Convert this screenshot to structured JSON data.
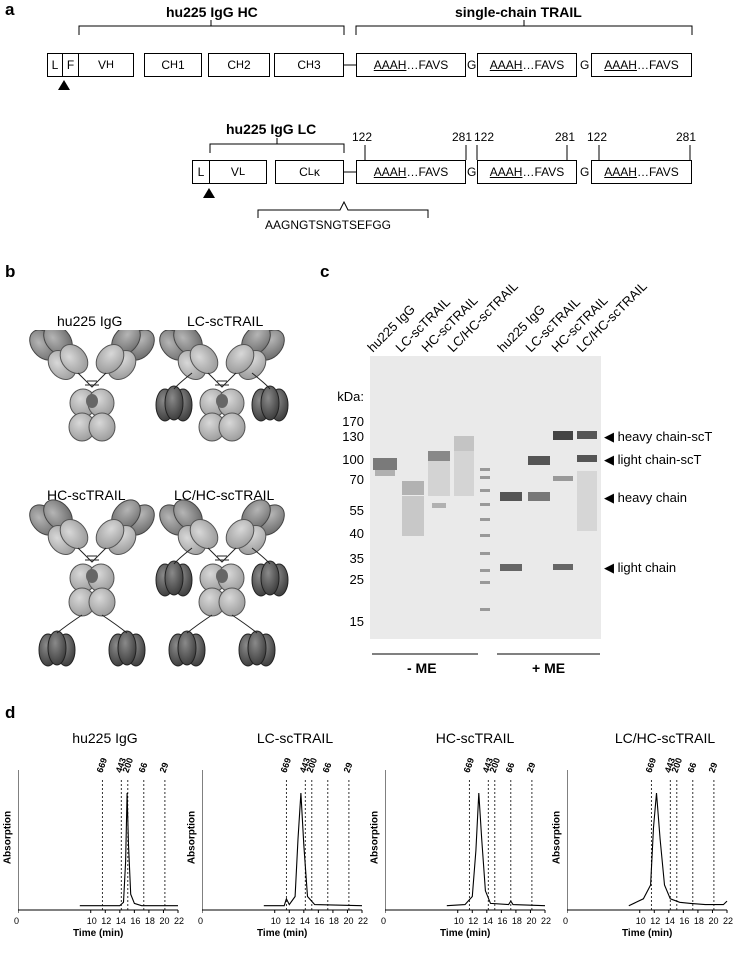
{
  "panels": {
    "a": "a",
    "b": "b",
    "c": "c",
    "d": "d"
  },
  "panel_a": {
    "hc_header": "hu225 IgG HC",
    "sctrail_header": "single-chain TRAIL",
    "lc_header": "hu225 IgG LC",
    "hc_domains": [
      "L",
      "F",
      "V",
      "C",
      "C",
      "C"
    ],
    "hc_domain_subs": [
      "",
      "",
      "H",
      "H",
      "H",
      "H"
    ],
    "hc_domain_suffix": [
      "",
      "",
      "",
      "1",
      "2",
      "3"
    ],
    "lc_domains": [
      "L",
      "V",
      "C"
    ],
    "lc_domain_subs": [
      "",
      "L",
      "L"
    ],
    "lc_domain_suffix": [
      "",
      "",
      "κ"
    ],
    "trail_seq_start": "AAAH",
    "trail_seq_dots": "…",
    "trail_seq_end": "FAVS",
    "glycine": "G",
    "positions": [
      "122",
      "281",
      "122",
      "281",
      "122",
      "281"
    ],
    "linker": "AAGNGTSNGTSEFGG"
  },
  "panel_b": {
    "constructs": [
      "hu225 IgG",
      "LC-scTRAIL",
      "HC-scTRAIL",
      "LC/HC-scTRAIL"
    ]
  },
  "panel_c": {
    "lanes": [
      "hu225 IgG",
      "LC-scTRAIL",
      "HC-scTRAIL",
      "LC/HC-scTRAIL",
      "hu225 IgG",
      "LC-scTRAIL",
      "HC-scTRAIL",
      "LC/HC-scTRAIL"
    ],
    "kda_label": "kDa:",
    "markers": [
      "170",
      "130",
      "100",
      "70",
      "55",
      "40",
      "35",
      "25",
      "15"
    ],
    "band_labels": [
      "heavy chain-scT",
      "light chain-scT",
      "heavy chain",
      "light chain"
    ],
    "conditions": [
      "- ME",
      "+ ME"
    ]
  },
  "panel_d": {
    "xlabel": "Time (min)",
    "ylabel": "Absorption",
    "mw_standards": [
      "669",
      "443",
      "200",
      "66",
      "29"
    ],
    "mw_times": [
      11.6,
      14.2,
      15.1,
      17.3,
      20.2
    ],
    "x_ticks": [
      "0",
      "10",
      "12",
      "14",
      "16",
      "18",
      "20",
      "22"
    ],
    "x_small_ticks": [
      "0",
      "10",
      "12",
      "14",
      "16",
      "18",
      "20",
      "22"
    ]
  },
  "chart_data": [
    {
      "type": "line",
      "title": "hu225 IgG",
      "xlabel": "Time (min)",
      "ylabel": "Absorption",
      "xlim": [
        0,
        22
      ],
      "x": [
        8.5,
        14,
        14.5,
        14.8,
        15.0,
        15.2,
        15.5,
        16.0,
        17,
        22
      ],
      "y": [
        0.02,
        0.02,
        0.05,
        0.4,
        1.0,
        0.55,
        0.12,
        0.04,
        0.02,
        0.02
      ]
    },
    {
      "type": "line",
      "title": "LC-scTRAIL",
      "xlabel": "Time (min)",
      "ylabel": "Absorption",
      "xlim": [
        0,
        22
      ],
      "x": [
        8.5,
        11.3,
        11.6,
        12.0,
        12.8,
        13.2,
        13.6,
        14.0,
        14.5,
        15.5,
        22
      ],
      "y": [
        0.02,
        0.02,
        0.08,
        0.03,
        0.1,
        0.6,
        1.0,
        0.55,
        0.1,
        0.03,
        0.02
      ]
    },
    {
      "type": "line",
      "title": "HC-scTRAIL",
      "xlabel": "Time (min)",
      "ylabel": "Absorption",
      "xlim": [
        0,
        22
      ],
      "x": [
        8.5,
        11,
        12.0,
        12.5,
        12.9,
        13.3,
        13.8,
        14.5,
        17.0,
        17.3,
        17.6,
        22
      ],
      "y": [
        0.02,
        0.03,
        0.1,
        0.5,
        1.0,
        0.6,
        0.15,
        0.04,
        0.03,
        0.06,
        0.03,
        0.02
      ]
    },
    {
      "type": "line",
      "title": "LC/HC-scTRAIL",
      "xlabel": "Time (min)",
      "ylabel": "Absorption",
      "xlim": [
        0,
        22
      ],
      "x": [
        8.5,
        9.5,
        10.5,
        11.5,
        11.9,
        12.3,
        12.8,
        13.4,
        14.2,
        15.5,
        17,
        19,
        21.5,
        22
      ],
      "y": [
        0.02,
        0.05,
        0.08,
        0.2,
        0.7,
        1.0,
        0.6,
        0.2,
        0.08,
        0.05,
        0.04,
        0.03,
        0.03,
        0.06
      ]
    }
  ]
}
